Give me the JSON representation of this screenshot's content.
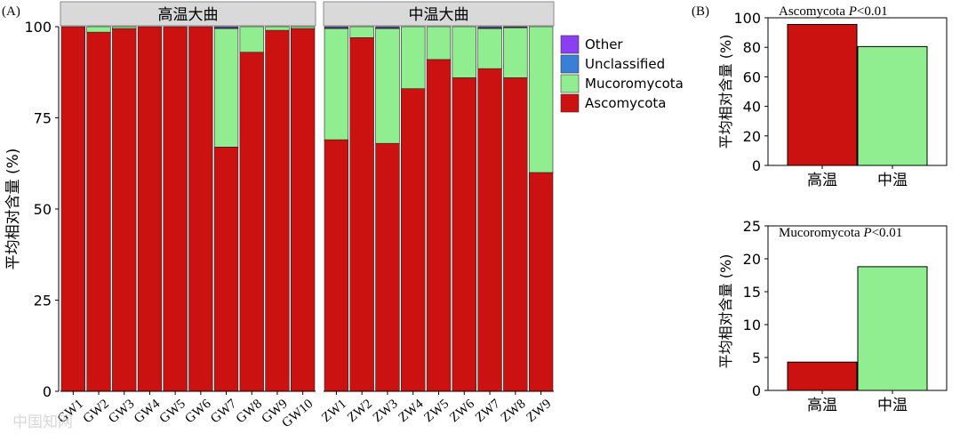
{
  "panel_labels": {
    "a": "(A)",
    "b": "(B)"
  },
  "colors": {
    "Other": "#8a3ff0",
    "Unclassified": "#3a7fd6",
    "Mucoromycota": "#90ee90",
    "Ascomycota": "#cc1111",
    "facet_strip": "#d9d9d9"
  },
  "legend": [
    "Other",
    "Unclassified",
    "Mucoromycota",
    "Ascomycota"
  ],
  "chart_data": [
    {
      "type": "bar",
      "stacked": true,
      "title": "",
      "xlabel": "",
      "ylabel": "平均相对含量 (%)",
      "ylim": [
        0,
        100
      ],
      "yticks": [
        0,
        25,
        50,
        75,
        100
      ],
      "facets": [
        {
          "strip": "高温大曲",
          "categories": [
            "GW1",
            "GW2",
            "GW3",
            "GW4",
            "GW5",
            "GW6",
            "GW7",
            "GW8",
            "GW9",
            "GW10"
          ],
          "series": [
            {
              "name": "Ascomycota",
              "values": [
                100,
                98.5,
                99.5,
                100,
                100,
                100,
                67,
                93,
                99,
                99.5
              ]
            },
            {
              "name": "Mucoromycota",
              "values": [
                0,
                1.5,
                0.5,
                0,
                0,
                0,
                32.5,
                7,
                1,
                0.5
              ]
            },
            {
              "name": "Unclassified",
              "values": [
                0,
                0,
                0,
                0,
                0,
                0,
                0.2,
                0,
                0,
                0
              ]
            },
            {
              "name": "Other",
              "values": [
                0,
                0,
                0,
                0,
                0,
                0,
                0.3,
                0,
                0,
                0
              ]
            }
          ]
        },
        {
          "strip": "中温大曲",
          "categories": [
            "ZW1",
            "ZW2",
            "ZW3",
            "ZW4",
            "ZW5",
            "ZW6",
            "ZW7",
            "ZW8",
            "ZW9"
          ],
          "series": [
            {
              "name": "Ascomycota",
              "values": [
                69,
                97,
                68,
                83,
                91,
                86,
                88.5,
                86,
                60
              ]
            },
            {
              "name": "Mucoromycota",
              "values": [
                30.5,
                3,
                31.5,
                17,
                9,
                14,
                11,
                13.7,
                40
              ]
            },
            {
              "name": "Unclassified",
              "values": [
                0.2,
                0,
                0.2,
                0,
                0,
                0,
                0.2,
                0.1,
                0
              ]
            },
            {
              "name": "Other",
              "values": [
                0.3,
                0,
                0.3,
                0,
                0,
                0,
                0.3,
                0.2,
                0
              ]
            }
          ]
        }
      ]
    },
    {
      "type": "bar",
      "title": "Ascomycota P<0.01",
      "title_main": "Ascomycota ",
      "title_p": "P",
      "title_rest": "<0.01",
      "ylabel": "平均相对含量 (%)",
      "ylim": [
        0,
        100
      ],
      "yticks": [
        0,
        20,
        40,
        60,
        80,
        100
      ],
      "categories": [
        "高温",
        "中温"
      ],
      "values": [
        95.5,
        80.5
      ],
      "bar_colors": [
        "#cc1111",
        "#90ee90"
      ]
    },
    {
      "type": "bar",
      "title": "Mucoromycota P<0.01",
      "title_main": "Mucoromycota ",
      "title_p": "P",
      "title_rest": "<0.01",
      "ylabel": "平均相对含量 (%)",
      "ylim": [
        0,
        25
      ],
      "yticks": [
        0,
        5,
        10,
        15,
        20,
        25
      ],
      "categories": [
        "高温",
        "中温"
      ],
      "values": [
        4.3,
        18.8
      ],
      "bar_colors": [
        "#cc1111",
        "#90ee90"
      ]
    }
  ],
  "watermark": "中国知网"
}
